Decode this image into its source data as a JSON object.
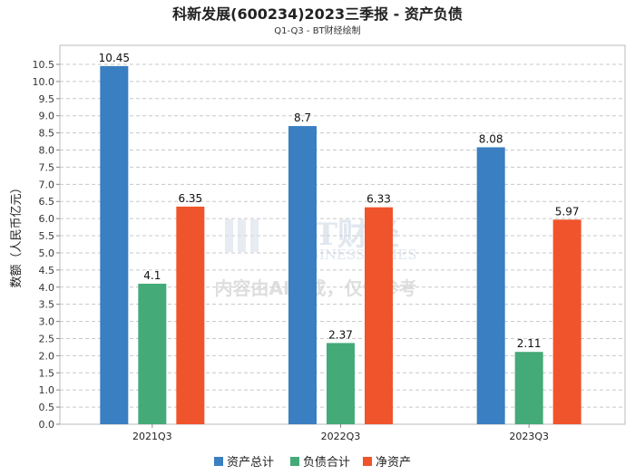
{
  "chart_data": {
    "type": "bar",
    "title": "科新发展(600234)2023三季报 - 资产负债",
    "subtitle": "Q1-Q3 - BT财经绘制",
    "ylabel": "数额（人民币亿元）",
    "xlabel": "",
    "ylim": [
      0,
      10.5
    ],
    "ytick_step": 0.5,
    "grid": true,
    "legend_position": "bottom",
    "categories": [
      "2021Q3",
      "2022Q3",
      "2023Q3"
    ],
    "series": [
      {
        "name": "资产总计",
        "color": "#3a7fc1",
        "values": [
          10.45,
          8.7,
          8.08
        ],
        "labels": [
          "10.45",
          "8.7",
          "8.08"
        ]
      },
      {
        "name": "负债合计",
        "color": "#44aa77",
        "values": [
          4.1,
          2.37,
          2.11
        ],
        "labels": [
          "4.1",
          "2.37",
          "2.11"
        ]
      },
      {
        "name": "净资产",
        "color": "#f0542c",
        "values": [
          6.35,
          6.33,
          5.97
        ],
        "labels": [
          "6.35",
          "6.33",
          "5.97"
        ]
      }
    ]
  },
  "watermark": {
    "brand": "BT财经",
    "brand_en": "BUSINESS TIMES",
    "notice": "内容由AI生成，仅供参考"
  }
}
